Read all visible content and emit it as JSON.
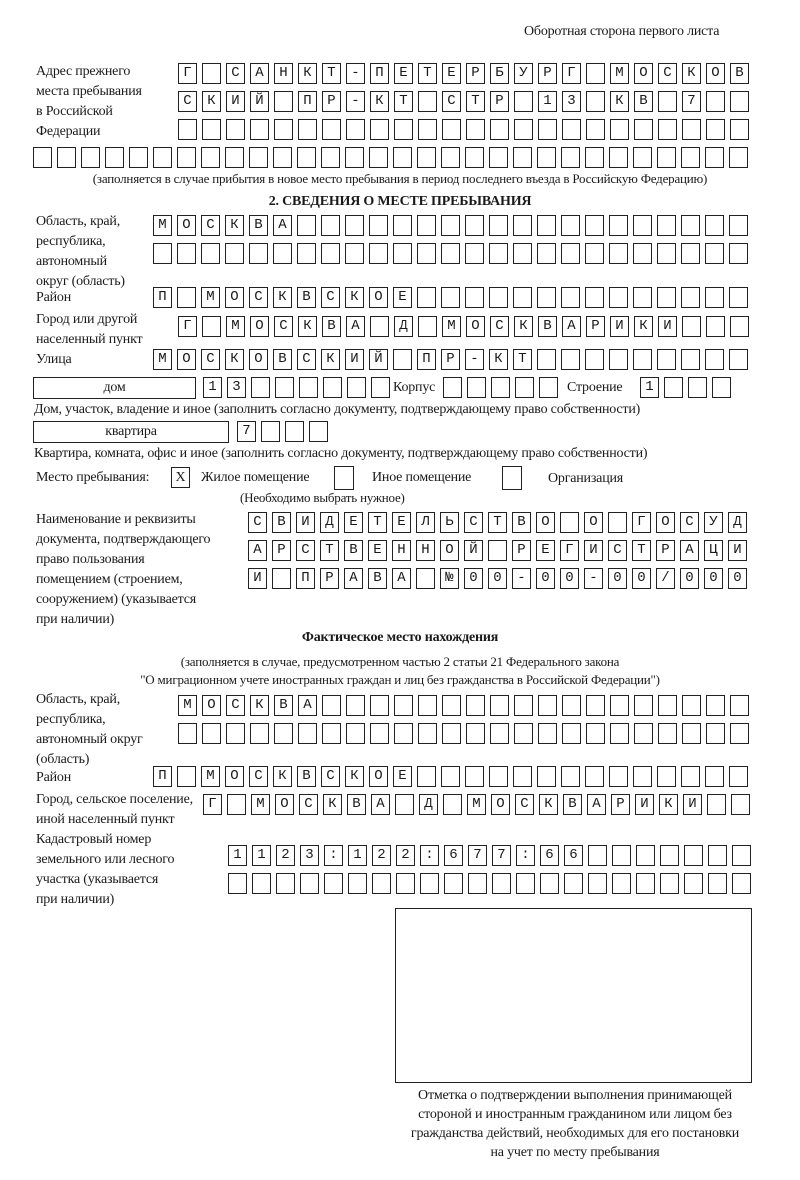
{
  "header": {
    "page_note": "Оборотная сторона первого листа"
  },
  "previous_address": {
    "label": [
      "Адрес прежнего",
      "места пребывания",
      "в Российской",
      "Федерации"
    ],
    "rows": [
      {
        "cells": "Г САНКТ-ПЕТЕРБУРГ МОСКОВ",
        "boxes": 24
      },
      {
        "cells": "СКИЙ ПР-КТ СТР 13 КВ 7",
        "boxes": 24
      },
      {
        "cells": "",
        "boxes": 24
      },
      {
        "cells": "",
        "boxes": 30
      }
    ],
    "note": "(заполняется в случае прибытия в новое место пребывания в период последнего въезда в Российскую Федерацию)"
  },
  "section2": {
    "title": "2. СВЕДЕНИЯ О МЕСТЕ ПРЕБЫВАНИЯ",
    "region_label": [
      "Область, край,",
      "республика,",
      "автономный",
      "округ (область)"
    ],
    "region_rows": [
      {
        "cells": "МОСКВА",
        "boxes": 25
      },
      {
        "cells": "",
        "boxes": 25
      }
    ],
    "district_label": "Район",
    "district": {
      "cells": "П МОСКВСКОЕ",
      "boxes": 25
    },
    "city_label": [
      "Город или другой",
      "населенный пункт"
    ],
    "city": {
      "cells": "Г МОСКВА Д МОСКВАРИКИ",
      "boxes": 24
    },
    "street_label": "Улица",
    "street": {
      "cells": "МОСКОВСКИЙ ПР-КТ",
      "boxes": 25
    },
    "house_type": "дом",
    "house": {
      "cells": "13",
      "boxes": 8
    },
    "building_label": "Корпус",
    "building": {
      "cells": "",
      "boxes": 5
    },
    "structure_label": "Строение",
    "structure": {
      "cells": "1",
      "boxes": 4
    },
    "house_note": "Дом, участок, владение и иное (заполнить согласно документу, подтверждающему право собственности)",
    "apartment_type": "квартира",
    "apartment": {
      "cells": "7",
      "boxes": 4
    },
    "apartment_note": "Квартира, комната, офис и иное (заполнить согласно документу, подтверждающему право собственности)",
    "stay_place_label": "Место пребывания:",
    "options": [
      {
        "label": "Жилое помещение",
        "mark": "X"
      },
      {
        "label": "Иное помещение",
        "mark": ""
      },
      {
        "label": "Организация",
        "mark": ""
      }
    ],
    "choose_note": "(Необходимо выбрать нужное)",
    "document_label": [
      "Наименование и реквизиты",
      "документа, подтверждающего",
      "право пользования",
      "помещением (строением,",
      "сооружением) (указывается",
      "при наличии)"
    ],
    "document_rows": [
      {
        "cells": "СВИДЕТЕЛЬСТВО О ГОСУД",
        "boxes": 21
      },
      {
        "cells": "АРСТВЕННОЙ РЕГИСТРАЦИ",
        "boxes": 21
      },
      {
        "cells": "И ПРАВА №00-00-00/000",
        "boxes": 21
      }
    ]
  },
  "actual": {
    "title": "Фактическое место нахождения",
    "note1": "(заполняется в случае, предусмотренном частью 2 статьи 21 Федерального закона",
    "note2": "\"О миграционном учете иностранных граждан и лиц без гражданства в Российской Федерации\")",
    "region_label": [
      "Область, край,",
      "республика,",
      "автономный округ",
      "(область)"
    ],
    "region_rows": [
      {
        "cells": "МОСКВА",
        "boxes": 24
      },
      {
        "cells": "",
        "boxes": 24
      }
    ],
    "district_label": "Район",
    "district": {
      "cells": "П МОСКВСКОЕ",
      "boxes": 25
    },
    "city_label": [
      "Город, сельское поселение,",
      "иной населенный пункт"
    ],
    "city": {
      "cells": "Г МОСКВА Д МОСКВАРИКИ",
      "boxes": 23
    },
    "cadastral_label": [
      "Кадастровый номер",
      "земельного или лесного",
      "участка (указывается",
      "при наличии)"
    ],
    "cadastral_rows": [
      {
        "cells": "1123:122:677:66",
        "boxes": 22
      },
      {
        "cells": "",
        "boxes": 22
      }
    ]
  },
  "stamp": {
    "caption": [
      "Отметка о подтверждении выполнения принимающей",
      "стороной и иностранным гражданином или лицом без",
      "гражданства действий, необходимых для его постановки",
      "на учет по месту пребывания"
    ]
  }
}
